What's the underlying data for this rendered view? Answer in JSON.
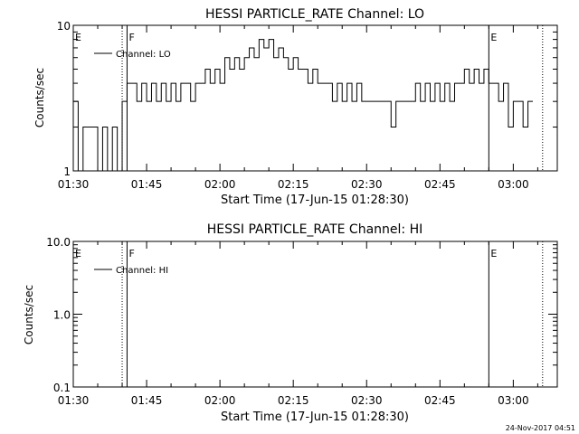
{
  "chart_data": [
    {
      "type": "line",
      "title": "HESSI PARTICLE_RATE Channel: LO",
      "xlabel": "Start Time (17-Jun-15 01:28:30)",
      "ylabel": "Counts/sec",
      "yscale": "log",
      "ylim": [
        1,
        10
      ],
      "xlim": [
        "01:30",
        "03:09"
      ],
      "x_ticks": [
        "01:30",
        "01:45",
        "02:00",
        "02:15",
        "02:30",
        "02:45",
        "03:00"
      ],
      "y_ticks": [
        "1",
        "10"
      ],
      "legend": "top-left",
      "series": [
        {
          "name": "Channel: LO",
          "x": [
            "01:30",
            "01:31",
            "01:32",
            "01:33",
            "01:34",
            "01:35",
            "01:36",
            "01:37",
            "01:38",
            "01:39",
            "01:40",
            "01:41",
            "01:42",
            "01:43",
            "01:44",
            "01:45",
            "01:46",
            "01:47",
            "01:48",
            "01:49",
            "01:50",
            "01:51",
            "01:52",
            "01:53",
            "01:54",
            "01:55",
            "01:56",
            "01:57",
            "01:58",
            "01:59",
            "02:00",
            "02:01",
            "02:02",
            "02:03",
            "02:04",
            "02:05",
            "02:06",
            "02:07",
            "02:08",
            "02:09",
            "02:10",
            "02:11",
            "02:12",
            "02:13",
            "02:14",
            "02:15",
            "02:16",
            "02:17",
            "02:18",
            "02:19",
            "02:20",
            "02:21",
            "02:22",
            "02:23",
            "02:24",
            "02:25",
            "02:26",
            "02:27",
            "02:28",
            "02:29",
            "02:30",
            "02:31",
            "02:32",
            "02:33",
            "02:34",
            "02:35",
            "02:36",
            "02:37",
            "02:38",
            "02:39",
            "02:40",
            "02:41",
            "02:42",
            "02:43",
            "02:44",
            "02:45",
            "02:46",
            "02:47",
            "02:48",
            "02:49",
            "02:50",
            "02:51",
            "02:52",
            "02:53",
            "02:54",
            "02:55",
            "02:56",
            "02:57",
            "02:58",
            "02:59",
            "03:00",
            "03:01",
            "03:02",
            "03:03"
          ],
          "values": [
            3,
            1,
            2,
            2,
            2,
            1,
            2,
            1,
            2,
            1,
            3,
            4,
            4,
            3,
            4,
            3,
            4,
            3,
            4,
            3,
            4,
            3,
            4,
            4,
            3,
            4,
            4,
            5,
            4,
            5,
            4,
            6,
            5,
            6,
            5,
            6,
            7,
            6,
            8,
            7,
            8,
            6,
            7,
            6,
            5,
            6,
            5,
            5,
            4,
            5,
            4,
            4,
            4,
            3,
            4,
            3,
            4,
            3,
            4,
            3,
            3,
            3,
            3,
            3,
            3,
            2,
            3,
            3,
            3,
            3,
            4,
            3,
            4,
            3,
            4,
            3,
            4,
            3,
            4,
            4,
            5,
            4,
            5,
            4,
            5,
            4,
            4,
            3,
            4,
            2,
            3,
            3,
            2,
            3
          ]
        }
      ],
      "flags": [
        {
          "label": "E",
          "x": "01:30"
        },
        {
          "label": "F",
          "x": "01:41"
        },
        {
          "label": "E",
          "x": "02:55"
        }
      ],
      "markers": [
        {
          "style": "dotted",
          "x": "01:40"
        },
        {
          "style": "solid",
          "x": "01:41"
        },
        {
          "style": "solid",
          "x": "02:55"
        },
        {
          "style": "dotted",
          "x": "03:06"
        }
      ]
    },
    {
      "type": "line",
      "title": "HESSI PARTICLE_RATE Channel: HI",
      "xlabel": "Start Time (17-Jun-15 01:28:30)",
      "ylabel": "Counts/sec",
      "yscale": "log",
      "ylim": [
        0.1,
        10
      ],
      "xlim": [
        "01:30",
        "03:09"
      ],
      "x_ticks": [
        "01:30",
        "01:45",
        "02:00",
        "02:15",
        "02:30",
        "02:45",
        "03:00"
      ],
      "y_ticks": [
        "0.1",
        "1.0",
        "10.0"
      ],
      "legend": "top-left",
      "series": [
        {
          "name": "Channel: HI",
          "x": [],
          "values": []
        }
      ],
      "flags": [
        {
          "label": "E",
          "x": "01:30"
        },
        {
          "label": "F",
          "x": "01:41"
        },
        {
          "label": "E",
          "x": "02:55"
        }
      ],
      "markers": [
        {
          "style": "dotted",
          "x": "01:40"
        },
        {
          "style": "solid",
          "x": "01:41"
        },
        {
          "style": "solid",
          "x": "02:55"
        },
        {
          "style": "dotted",
          "x": "03:06"
        }
      ]
    }
  ],
  "footer": "24-Nov-2017 04:51"
}
